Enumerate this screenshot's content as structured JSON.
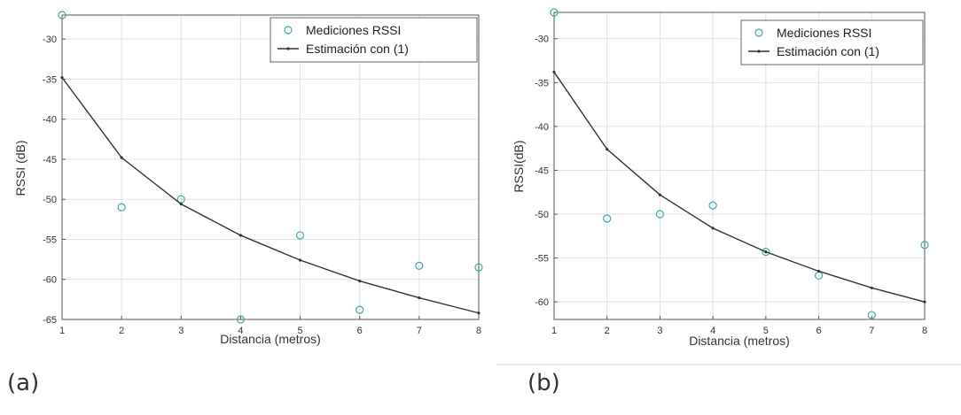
{
  "chart_data": [
    {
      "type": "scatter+line",
      "xlabel": "Distancia (metros)",
      "ylabel": "RSSI (dB)",
      "xlim": [
        1,
        8
      ],
      "ylim": [
        -65,
        -27
      ],
      "xticks": [
        1,
        2,
        3,
        4,
        5,
        6,
        7,
        8
      ],
      "yticks": [
        -30,
        -35,
        -40,
        -45,
        -50,
        -55,
        -60,
        -65
      ],
      "grid": true,
      "legend": "top-right",
      "series": [
        {
          "name": "Mediciones RSSI",
          "kind": "markers",
          "color": "#3fa7a7",
          "x": [
            1,
            2,
            3,
            4,
            5,
            6,
            7,
            8
          ],
          "y": [
            -27,
            -51,
            -50,
            -65,
            -54.5,
            -63.8,
            -58.3,
            -58.5
          ]
        },
        {
          "name": "Estimación con (1)",
          "kind": "line",
          "color": "#333333",
          "x": [
            1,
            2,
            3,
            4,
            5,
            6,
            7,
            8
          ],
          "y": [
            -34.8,
            -44.8,
            -50.6,
            -54.5,
            -57.6,
            -60.2,
            -62.3,
            -64.2
          ]
        }
      ]
    },
    {
      "type": "scatter+line",
      "xlabel": "Distancia (metros)",
      "ylabel": "RSSI(dB)",
      "xlim": [
        1,
        8
      ],
      "ylim": [
        -62,
        -27
      ],
      "xticks": [
        1,
        2,
        3,
        4,
        5,
        6,
        7,
        8
      ],
      "yticks": [
        -30,
        -35,
        -40,
        -45,
        -50,
        -55,
        -60
      ],
      "grid": true,
      "legend": "top-right",
      "series": [
        {
          "name": "Mediciones RSSI",
          "kind": "markers",
          "color": "#3fa7a7",
          "x": [
            1,
            2,
            3,
            4,
            5,
            6,
            7,
            8
          ],
          "y": [
            -27,
            -50.5,
            -50,
            -49,
            -54.3,
            -57,
            -61.5,
            -53.5
          ]
        },
        {
          "name": "Estimación con (1)",
          "kind": "line",
          "color": "#333333",
          "x": [
            1,
            2,
            3,
            4,
            5,
            6,
            7,
            8
          ],
          "y": [
            -33.8,
            -42.6,
            -47.8,
            -51.6,
            -54.3,
            -56.5,
            -58.4,
            -60
          ]
        }
      ]
    }
  ],
  "captions": [
    "(a)",
    "(b)"
  ]
}
